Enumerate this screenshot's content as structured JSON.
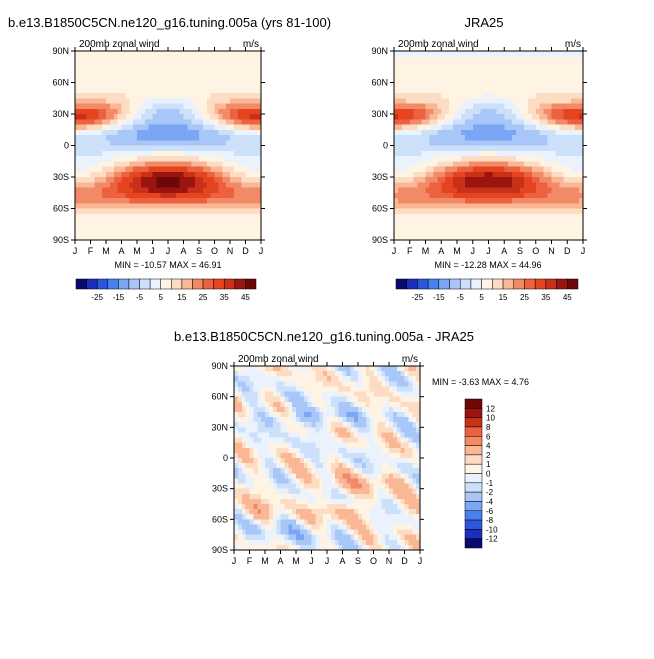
{
  "chart_data": [
    {
      "type": "heatmap",
      "title": "b.e13.B1850C5CN.ne120_g16.tuning.005a (yrs 81-100)",
      "left_label": "200mb zonal wind",
      "right_label": "m/s",
      "x_tick_labels": [
        "J",
        "F",
        "M",
        "A",
        "M",
        "J",
        "J",
        "A",
        "S",
        "O",
        "N",
        "D",
        "J"
      ],
      "y_tick_labels": [
        "90N",
        "60N",
        "30N",
        "0",
        "30S",
        "60S",
        "90S"
      ],
      "ylim": [
        -90,
        90
      ],
      "stats": "MIN = -10.57 MAX =  46.91",
      "colorbar": {
        "orientation": "horizontal",
        "tick_labels": [
          "-25",
          "-15",
          "-5",
          "5",
          "15",
          "25",
          "35",
          "45"
        ],
        "levels": [
          -30,
          -25,
          -20,
          -15,
          -10,
          -5,
          0,
          5,
          10,
          15,
          20,
          25,
          30,
          35,
          40,
          45
        ],
        "colors": [
          "#0a0a6e",
          "#1c2dc0",
          "#2c55e0",
          "#4a7ff0",
          "#7aa6f5",
          "#a8c6f8",
          "#cde0fa",
          "#eaf2fd",
          "#fff3e4",
          "#fddcc4",
          "#f9b795",
          "#f28b65",
          "#ec6240",
          "#e44520",
          "#c8301a",
          "#9a1410",
          "#6e0808"
        ]
      },
      "field": "model"
    },
    {
      "type": "heatmap",
      "title": "JRA25",
      "left_label": "200mb zonal wind",
      "right_label": "m/s",
      "x_tick_labels": [
        "J",
        "F",
        "M",
        "A",
        "M",
        "J",
        "J",
        "A",
        "S",
        "O",
        "N",
        "D",
        "J"
      ],
      "y_tick_labels": [
        "90N",
        "60N",
        "30N",
        "0",
        "30S",
        "60S",
        "90S"
      ],
      "ylim": [
        -90,
        90
      ],
      "stats": "MIN = -12.28 MAX =  44.96",
      "colorbar": {
        "orientation": "horizontal",
        "tick_labels": [
          "-25",
          "-15",
          "-5",
          "5",
          "15",
          "25",
          "35",
          "45"
        ],
        "levels": [
          -30,
          -25,
          -20,
          -15,
          -10,
          -5,
          0,
          5,
          10,
          15,
          20,
          25,
          30,
          35,
          40,
          45
        ],
        "colors": [
          "#0a0a6e",
          "#1c2dc0",
          "#2c55e0",
          "#4a7ff0",
          "#7aa6f5",
          "#a8c6f8",
          "#cde0fa",
          "#eaf2fd",
          "#fff3e4",
          "#fddcc4",
          "#f9b795",
          "#f28b65",
          "#ec6240",
          "#e44520",
          "#c8301a",
          "#9a1410",
          "#6e0808"
        ]
      },
      "field": "obs"
    },
    {
      "type": "heatmap",
      "title": "b.e13.B1850C5CN.ne120_g16.tuning.005a - JRA25",
      "left_label": "200mb zonal wind",
      "right_label": "m/s",
      "x_tick_labels": [
        "J",
        "F",
        "M",
        "A",
        "M",
        "J",
        "J",
        "A",
        "S",
        "O",
        "N",
        "D",
        "J"
      ],
      "y_tick_labels": [
        "90N",
        "60N",
        "30N",
        "0",
        "30S",
        "60S",
        "90S"
      ],
      "ylim": [
        -90,
        90
      ],
      "stats": "MIN =  -3.63 MAX =   4.76",
      "colorbar": {
        "orientation": "vertical",
        "tick_labels": [
          "12",
          "10",
          "8",
          "6",
          "4",
          "2",
          "1",
          "0",
          "-1",
          "-2",
          "-4",
          "-6",
          "-8",
          "-10",
          "-12"
        ],
        "levels": [
          -12,
          -10,
          -8,
          -6,
          -4,
          -2,
          -1,
          0,
          1,
          2,
          4,
          6,
          8,
          10,
          12
        ],
        "colors": [
          "#0a0a6e",
          "#1c2dc0",
          "#2c55e0",
          "#4a7ff0",
          "#7aa6f5",
          "#a8c6f8",
          "#cde0fa",
          "#eaf2fd",
          "#fff3e4",
          "#fddcc4",
          "#f9b795",
          "#f28b65",
          "#ec6240",
          "#c8301a",
          "#9a1410",
          "#6e0808"
        ]
      },
      "field": "diff"
    }
  ]
}
